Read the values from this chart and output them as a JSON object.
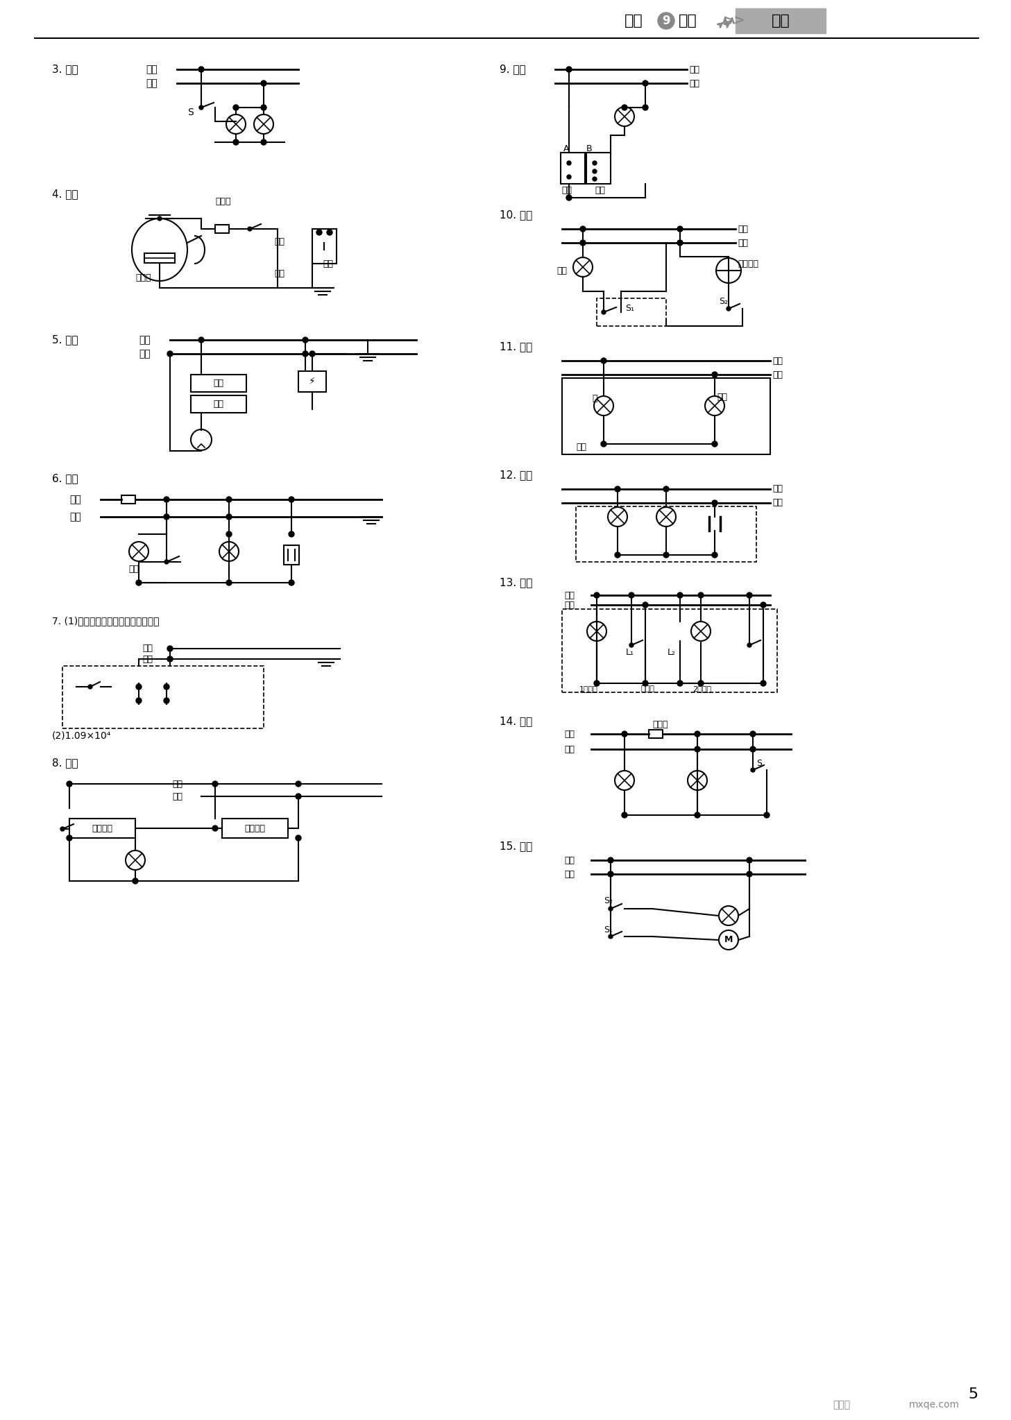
{
  "page_num": "5",
  "header_text": "物理",
  "header_grade": "9",
  "header_grade_suffix": "年级",
  "header_right": "下册",
  "bg_color": "#ffffff",
  "line_color": "#000000",
  "text_color": "#000000",
  "font_size_label": 10,
  "font_size_small": 8,
  "font_size_header": 14
}
